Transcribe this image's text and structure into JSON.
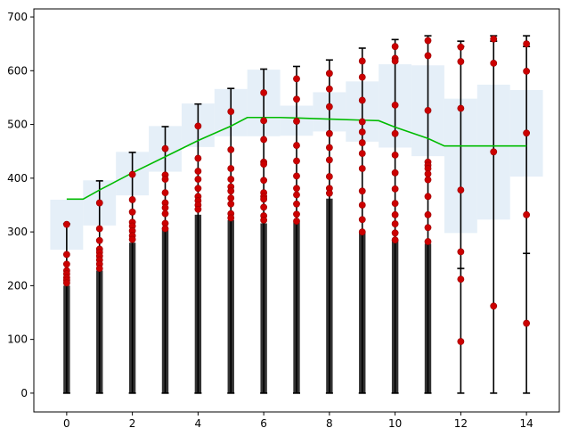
{
  "chart_data": {
    "type": "bar",
    "title": "",
    "xlabel": "",
    "ylabel": "",
    "xlim": [
      -1,
      15
    ],
    "ylim": [
      -35,
      715
    ],
    "xticks": [
      0,
      2,
      4,
      6,
      8,
      10,
      12,
      14
    ],
    "yticks": [
      0,
      100,
      200,
      300,
      400,
      500,
      600,
      700
    ],
    "grid": false,
    "legend": "none",
    "colors": {
      "bars": "#333333",
      "points": "#cc0000",
      "line": "#00bb00",
      "bands": "#dce9f5",
      "errorbars": "#000000"
    },
    "bars": {
      "x": [
        0,
        1,
        2,
        3,
        4,
        5,
        6,
        7,
        8,
        9,
        10,
        11
      ],
      "values": [
        200,
        228,
        280,
        304,
        332,
        322,
        316,
        318,
        362,
        302,
        285,
        278
      ]
    },
    "errorbars": {
      "x": [
        0,
        1,
        2,
        3,
        4,
        5,
        6,
        7,
        8,
        9,
        10,
        11,
        12,
        13,
        14
      ],
      "low": [
        0,
        0,
        0,
        0,
        0,
        0,
        0,
        0,
        0,
        0,
        0,
        0,
        0,
        0,
        0
      ],
      "high": [
        315,
        395,
        448,
        496,
        538,
        567,
        603,
        608,
        620,
        642,
        658,
        665,
        655,
        665,
        665
      ]
    },
    "errorbar_inner_caps": [
      {
        "x": 12,
        "values": [
          232,
          645
        ]
      },
      {
        "x": 13,
        "values": [
          655
        ]
      },
      {
        "x": 14,
        "values": [
          260,
          645
        ]
      }
    ],
    "line": {
      "x": [
        0,
        0.5,
        1,
        2,
        3,
        4,
        5,
        5.5,
        6,
        6.5,
        7,
        8,
        9,
        9.5,
        10,
        11,
        11.5,
        12,
        13,
        14
      ],
      "y": [
        361,
        361,
        378,
        410,
        440,
        470,
        497,
        513,
        513,
        513,
        512,
        510,
        508,
        507,
        495,
        474,
        460,
        460,
        460,
        460
      ]
    },
    "bands": [
      {
        "x": 0,
        "low": 267,
        "high": 360
      },
      {
        "x": 1,
        "low": 312,
        "high": 396
      },
      {
        "x": 2,
        "low": 368,
        "high": 449
      },
      {
        "x": 3,
        "low": 412,
        "high": 497
      },
      {
        "x": 4,
        "low": 458,
        "high": 539
      },
      {
        "x": 5,
        "low": 478,
        "high": 566
      },
      {
        "x": 6,
        "low": 478,
        "high": 602
      },
      {
        "x": 7,
        "low": 479,
        "high": 535
      },
      {
        "x": 8,
        "low": 487,
        "high": 560
      },
      {
        "x": 9,
        "low": 468,
        "high": 580
      },
      {
        "x": 10,
        "low": 457,
        "high": 612
      },
      {
        "x": 11,
        "low": 441,
        "high": 610
      },
      {
        "x": 12,
        "low": 298,
        "high": 548
      },
      {
        "x": 13,
        "low": 323,
        "high": 574
      },
      {
        "x": 14,
        "low": 403,
        "high": 564
      }
    ],
    "points": [
      {
        "x": 0,
        "y": [
          314,
          258,
          240,
          228,
          222,
          215,
          210,
          205
        ]
      },
      {
        "x": 1,
        "y": [
          354,
          306,
          284,
          268,
          262,
          255,
          248,
          240,
          232
        ]
      },
      {
        "x": 2,
        "y": [
          407,
          360,
          337,
          318,
          311,
          302,
          293,
          286
        ]
      },
      {
        "x": 3,
        "y": [
          455,
          406,
          398,
          373,
          354,
          345,
          334,
          316,
          306
        ]
      },
      {
        "x": 4,
        "y": [
          497,
          437,
          413,
          398,
          381,
          366,
          358,
          350,
          342
        ]
      },
      {
        "x": 5,
        "y": [
          524,
          453,
          418,
          398,
          384,
          376,
          363,
          352,
          334,
          326
        ]
      },
      {
        "x": 6,
        "y": [
          559,
          507,
          472,
          430,
          426,
          396,
          373,
          366,
          361,
          346,
          330,
          322
        ]
      },
      {
        "x": 7,
        "y": [
          585,
          547,
          506,
          461,
          432,
          404,
          381,
          369,
          352,
          333,
          320
        ]
      },
      {
        "x": 8,
        "y": [
          595,
          566,
          533,
          483,
          457,
          434,
          403,
          381,
          372
        ]
      },
      {
        "x": 9,
        "y": [
          618,
          588,
          545,
          505,
          486,
          466,
          446,
          418,
          376,
          350,
          323,
          300
        ]
      },
      {
        "x": 10,
        "y": [
          645,
          623,
          618,
          536,
          483,
          443,
          410,
          380,
          353,
          332,
          315,
          298,
          285
        ]
      },
      {
        "x": 11,
        "y": [
          656,
          628,
          526,
          430,
          424,
          418,
          408,
          397,
          366,
          332,
          308,
          282
        ]
      },
      {
        "x": 12,
        "y": [
          644,
          617,
          530,
          378,
          263,
          212,
          96
        ]
      },
      {
        "x": 13,
        "y": [
          659,
          614,
          449,
          162
        ]
      },
      {
        "x": 14,
        "y": [
          650,
          599,
          484,
          332,
          130
        ]
      }
    ]
  }
}
